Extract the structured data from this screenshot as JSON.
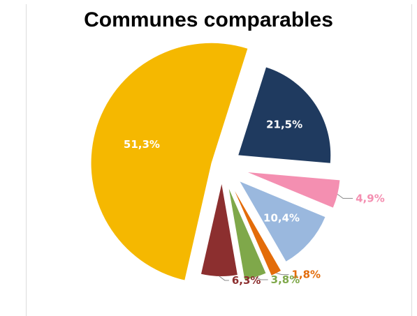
{
  "chart_data": {
    "type": "pie",
    "title": "Communes comparables",
    "slices": [
      {
        "value": 21.5,
        "label": "21,5%",
        "color": "#1f3a5f",
        "label_style": "inside"
      },
      {
        "value": 4.9,
        "label": "4,9%",
        "color": "#f48fb1",
        "label_style": "outside"
      },
      {
        "value": 10.4,
        "label": "10,4%",
        "color": "#9ab8de",
        "label_style": "inside"
      },
      {
        "value": 1.8,
        "label": "1,8%",
        "color": "#e36c0a",
        "label_style": "outside"
      },
      {
        "value": 3.8,
        "label": "3,8%",
        "color": "#7fa84a",
        "label_style": "outside"
      },
      {
        "value": 6.3,
        "label": "6,3%",
        "color": "#8c2f2f",
        "label_style": "outside"
      },
      {
        "value": 51.3,
        "label": "51,3%",
        "color": "#f5b800",
        "label_style": "inside"
      }
    ]
  }
}
